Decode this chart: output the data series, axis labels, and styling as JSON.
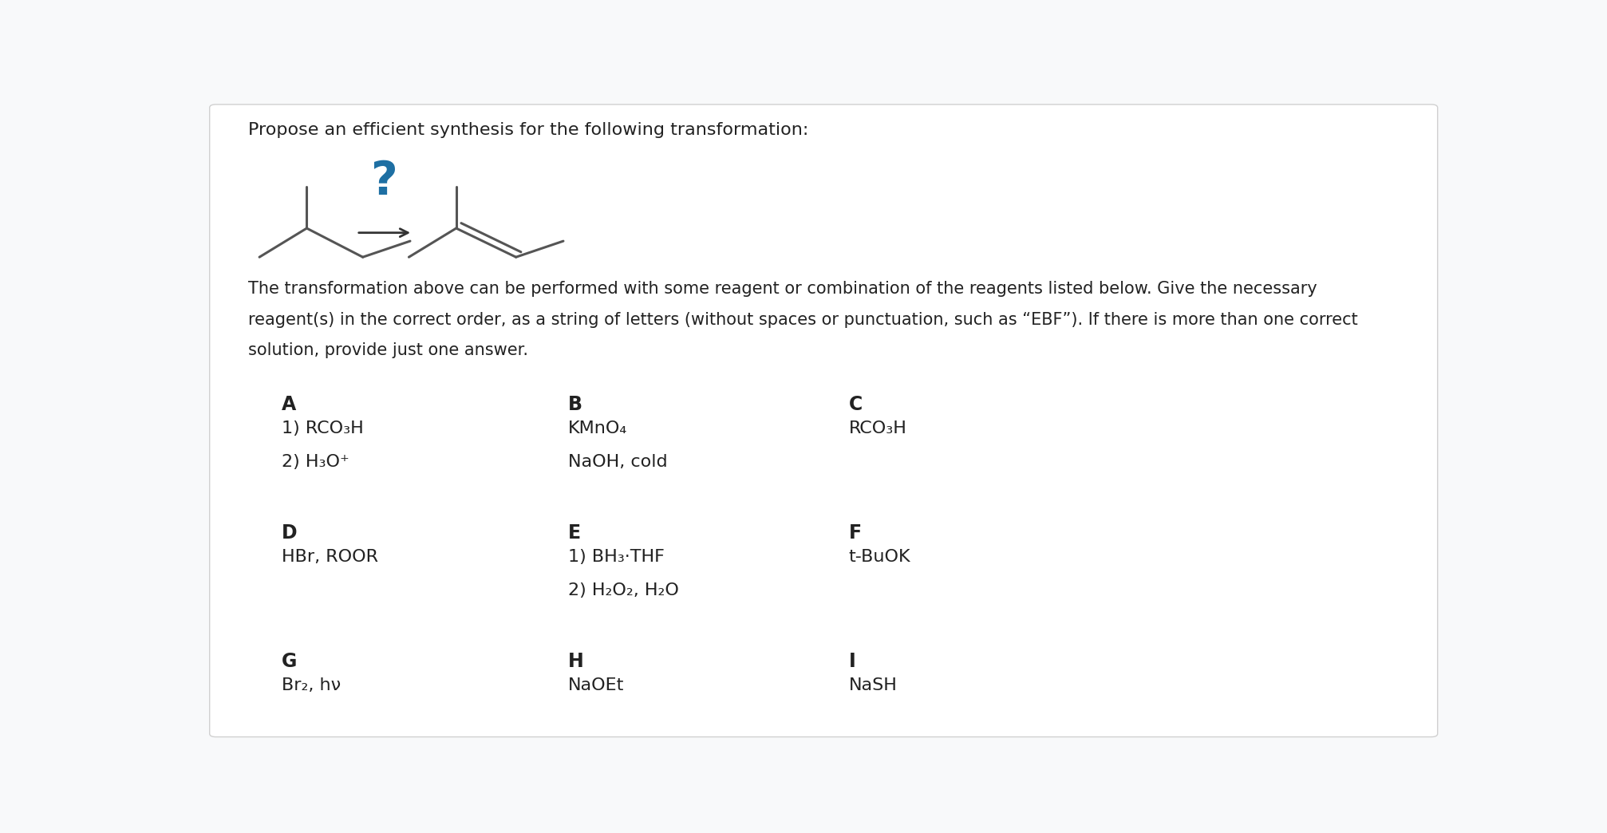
{
  "title": "Propose an efficient synthesis for the following transformation:",
  "description_lines": [
    "The transformation above can be performed with some reagent or combination of the reagents listed below. Give the necessary",
    "reagent(s) in the correct order, as a string of letters (without spaces or punctuation, such as “EBF”). If there is more than one correct",
    "solution, provide just one answer."
  ],
  "background_color": "#f8f9fa",
  "panel_color": "#ffffff",
  "border_color": "#d0d0d0",
  "text_color": "#222222",
  "mol_color": "#555555",
  "arrow_color": "#333333",
  "question_mark_color": "#1e6fa3",
  "reagents": [
    {
      "letter": "A",
      "lines": [
        "1) RCO₃H",
        "2) H₃O⁺"
      ],
      "col": 0,
      "row": 0
    },
    {
      "letter": "B",
      "lines": [
        "KMnO₄",
        "NaOH, cold"
      ],
      "col": 1,
      "row": 0
    },
    {
      "letter": "C",
      "lines": [
        "RCO₃H"
      ],
      "col": 2,
      "row": 0
    },
    {
      "letter": "D",
      "lines": [
        "HBr, ROOR"
      ],
      "col": 0,
      "row": 1
    },
    {
      "letter": "E",
      "lines": [
        "1) BH₃·THF",
        "2) H₂O₂, H₂O"
      ],
      "col": 1,
      "row": 1
    },
    {
      "letter": "F",
      "lines": [
        "t-BuOK"
      ],
      "col": 2,
      "row": 1
    },
    {
      "letter": "G",
      "lines": [
        "Br₂, hν"
      ],
      "col": 0,
      "row": 2
    },
    {
      "letter": "H",
      "lines": [
        "NaOEt"
      ],
      "col": 1,
      "row": 2
    },
    {
      "letter": "I",
      "lines": [
        "NaSH"
      ],
      "col": 2,
      "row": 2
    }
  ],
  "figsize": [
    20.14,
    10.44
  ],
  "dpi": 100,
  "title_fontsize": 16,
  "desc_fontsize": 15,
  "letter_fontsize": 17,
  "content_fontsize": 16
}
